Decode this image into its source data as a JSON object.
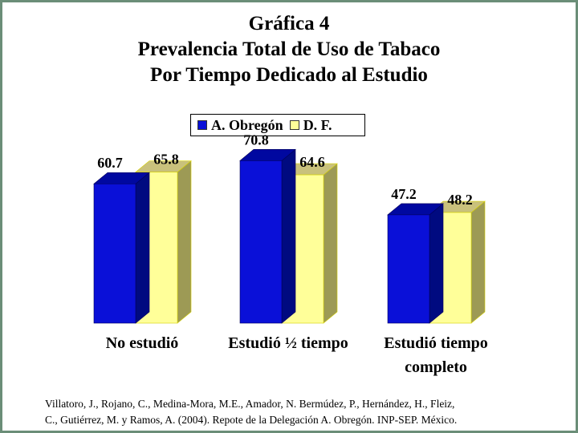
{
  "title": {
    "line1": "Gráfica 4",
    "line2": "Prevalencia Total de Uso de Tabaco",
    "line3": "Por Tiempo Dedicado al Estudio"
  },
  "colors": {
    "frame": "#6b8e78",
    "series1": "#0a10d8",
    "series2": "#ffff99"
  },
  "chart_data": {
    "type": "bar",
    "categories": [
      "No estudió",
      "Estudió ½ tiempo",
      "Estudió tiempo completo"
    ],
    "category_lines": [
      [
        "No estudió"
      ],
      [
        "Estudió ½ tiempo"
      ],
      [
        "Estudió tiempo",
        "completo"
      ]
    ],
    "series": [
      {
        "name": "A. Obregón",
        "values": [
          60.7,
          70.8,
          47.2
        ],
        "labels": [
          "60.7",
          "70.8",
          "47.2"
        ]
      },
      {
        "name": "D. F.",
        "values": [
          65.8,
          64.6,
          48.2
        ],
        "labels": [
          "65.8",
          "64.6",
          "48.2"
        ]
      }
    ],
    "ylim": [
      0,
      80
    ],
    "xlabel": "",
    "ylabel": "",
    "grid": false,
    "legend_position": "top-center"
  },
  "citation": {
    "line1": "Villatoro, J., Rojano, C., Medina-Mora, M.E., Amador, N. Bermúdez, P., Hernández, H., Fleiz,",
    "line2": "C., Gutiérrez, M. y Ramos, A. (2004). Repote de la Delegación A. Obregón. INP-SEP. México."
  }
}
